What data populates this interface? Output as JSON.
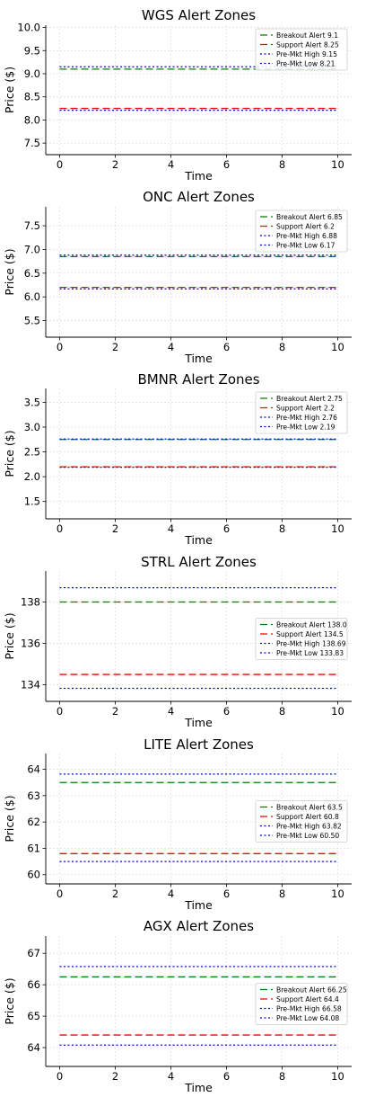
{
  "chart_data": [
    {
      "type": "line",
      "title": "WGS Alert Zones",
      "xlabel": "Time",
      "ylabel": "Price ($)",
      "xlim": [
        -0.5,
        10.5
      ],
      "ylim": [
        7.25,
        10.05
      ],
      "xticks": [
        0,
        2,
        4,
        6,
        8,
        10
      ],
      "yticks": [
        7.5,
        8.0,
        8.5,
        9.0,
        9.5,
        10.0
      ],
      "ytick_labels": [
        "7.5",
        "8.0",
        "8.5",
        "9.0",
        "9.5",
        "10.0"
      ],
      "grid": true,
      "legend_position": "upper right",
      "series": [
        {
          "name": "Breakout Alert 9.1",
          "x": [
            0,
            10
          ],
          "y": [
            9.1,
            9.1
          ],
          "color": "#008000",
          "dash": "dashed"
        },
        {
          "name": "Support Alert 8.25",
          "x": [
            0,
            10
          ],
          "y": [
            8.25,
            8.25
          ],
          "color": "#ff0000",
          "dash": "dashed"
        },
        {
          "name": "Pre-Mkt High 9.15",
          "x": [
            0,
            10
          ],
          "y": [
            9.15,
            9.15
          ],
          "color": "#0000ff",
          "dash": "dotted"
        },
        {
          "name": "Pre-Mkt Low 8.21",
          "x": [
            0,
            10
          ],
          "y": [
            8.21,
            8.21
          ],
          "color": "#0000ff",
          "dash": "dotted"
        }
      ]
    },
    {
      "type": "line",
      "title": "ONC Alert Zones",
      "xlabel": "Time",
      "ylabel": "Price ($)",
      "xlim": [
        -0.5,
        10.5
      ],
      "ylim": [
        5.15,
        7.9
      ],
      "xticks": [
        0,
        2,
        4,
        6,
        8,
        10
      ],
      "yticks": [
        5.5,
        6.0,
        6.5,
        7.0,
        7.5
      ],
      "ytick_labels": [
        "5.5",
        "6.0",
        "6.5",
        "7.0",
        "7.5"
      ],
      "grid": true,
      "legend_position": "upper right",
      "series": [
        {
          "name": "Breakout Alert 6.85",
          "x": [
            0,
            10
          ],
          "y": [
            6.85,
            6.85
          ],
          "color": "#008000",
          "dash": "dashed"
        },
        {
          "name": "Support Alert 6.2",
          "x": [
            0,
            10
          ],
          "y": [
            6.2,
            6.2
          ],
          "color": "#ff0000",
          "dash": "dashed"
        },
        {
          "name": "Pre-Mkt High 6.88",
          "x": [
            0,
            10
          ],
          "y": [
            6.88,
            6.88
          ],
          "color": "#0000ff",
          "dash": "dotted"
        },
        {
          "name": "Pre-Mkt Low 6.17",
          "x": [
            0,
            10
          ],
          "y": [
            6.17,
            6.17
          ],
          "color": "#0000ff",
          "dash": "dotted"
        }
      ]
    },
    {
      "type": "line",
      "title": "BMNR Alert Zones",
      "xlabel": "Time",
      "ylabel": "Price ($)",
      "xlim": [
        -0.5,
        10.5
      ],
      "ylim": [
        1.15,
        3.78
      ],
      "xticks": [
        0,
        2,
        4,
        6,
        8,
        10
      ],
      "yticks": [
        1.5,
        2.0,
        2.5,
        3.0,
        3.5
      ],
      "ytick_labels": [
        "1.5",
        "2.0",
        "2.5",
        "3.0",
        "3.5"
      ],
      "grid": true,
      "legend_position": "upper right",
      "series": [
        {
          "name": "Breakout Alert 2.75",
          "x": [
            0,
            10
          ],
          "y": [
            2.75,
            2.75
          ],
          "color": "#008000",
          "dash": "dashed"
        },
        {
          "name": "Support Alert 2.2",
          "x": [
            0,
            10
          ],
          "y": [
            2.2,
            2.2
          ],
          "color": "#ff0000",
          "dash": "dashed"
        },
        {
          "name": "Pre-Mkt High 2.76",
          "x": [
            0,
            10
          ],
          "y": [
            2.76,
            2.76
          ],
          "color": "#0000ff",
          "dash": "dotted"
        },
        {
          "name": "Pre-Mkt Low 2.19",
          "x": [
            0,
            10
          ],
          "y": [
            2.19,
            2.19
          ],
          "color": "#0000ff",
          "dash": "dotted"
        }
      ]
    },
    {
      "type": "line",
      "title": "STRL Alert Zones",
      "xlabel": "Time",
      "ylabel": "Price ($)",
      "xlim": [
        -0.5,
        10.5
      ],
      "ylim": [
        133.2,
        139.5
      ],
      "xticks": [
        0,
        2,
        4,
        6,
        8,
        10
      ],
      "yticks": [
        134,
        136,
        138
      ],
      "ytick_labels": [
        "134",
        "136",
        "138"
      ],
      "grid": true,
      "legend_position": "center right",
      "series": [
        {
          "name": "Breakout Alert 138.0",
          "x": [
            0,
            10
          ],
          "y": [
            138.0,
            138.0
          ],
          "color": "#008000",
          "dash": "dashed"
        },
        {
          "name": "Support Alert 134.5",
          "x": [
            0,
            10
          ],
          "y": [
            134.5,
            134.5
          ],
          "color": "#ff0000",
          "dash": "dashed"
        },
        {
          "name": "Pre-Mkt High 138.69",
          "x": [
            0,
            10
          ],
          "y": [
            138.69,
            138.69
          ],
          "color": "#0000ff",
          "dash": "dotted"
        },
        {
          "name": "Pre-Mkt Low 133.83",
          "x": [
            0,
            10
          ],
          "y": [
            133.83,
            133.83
          ],
          "color": "#0000ff",
          "dash": "dotted"
        }
      ]
    },
    {
      "type": "line",
      "title": "LITE Alert Zones",
      "xlabel": "Time",
      "ylabel": "Price ($)",
      "xlim": [
        -0.5,
        10.5
      ],
      "ylim": [
        59.65,
        64.6
      ],
      "xticks": [
        0,
        2,
        4,
        6,
        8,
        10
      ],
      "yticks": [
        60,
        61,
        62,
        63,
        64
      ],
      "ytick_labels": [
        "60",
        "61",
        "62",
        "63",
        "64"
      ],
      "grid": true,
      "legend_position": "center right",
      "series": [
        {
          "name": "Breakout Alert 63.5",
          "x": [
            0,
            10
          ],
          "y": [
            63.5,
            63.5
          ],
          "color": "#008000",
          "dash": "dashed"
        },
        {
          "name": "Support Alert 60.8",
          "x": [
            0,
            10
          ],
          "y": [
            60.8,
            60.8
          ],
          "color": "#ff0000",
          "dash": "dashed"
        },
        {
          "name": "Pre-Mkt High 63.82",
          "x": [
            0,
            10
          ],
          "y": [
            63.82,
            63.82
          ],
          "color": "#0000ff",
          "dash": "dotted"
        },
        {
          "name": "Pre-Mkt Low 60.50",
          "x": [
            0,
            10
          ],
          "y": [
            60.5,
            60.5
          ],
          "color": "#0000ff",
          "dash": "dotted"
        }
      ]
    },
    {
      "type": "line",
      "title": "AGX Alert Zones",
      "xlabel": "Time",
      "ylabel": "Price ($)",
      "xlim": [
        -0.5,
        10.5
      ],
      "ylim": [
        63.4,
        67.55
      ],
      "xticks": [
        0,
        2,
        4,
        6,
        8,
        10
      ],
      "yticks": [
        64,
        65,
        66,
        67
      ],
      "ytick_labels": [
        "64",
        "65",
        "66",
        "67"
      ],
      "grid": true,
      "legend_position": "center right",
      "series": [
        {
          "name": "Breakout Alert 66.25",
          "x": [
            0,
            10
          ],
          "y": [
            66.25,
            66.25
          ],
          "color": "#008000",
          "dash": "dashed"
        },
        {
          "name": "Support Alert 64.4",
          "x": [
            0,
            10
          ],
          "y": [
            64.4,
            64.4
          ],
          "color": "#ff0000",
          "dash": "dashed"
        },
        {
          "name": "Pre-Mkt High 66.58",
          "x": [
            0,
            10
          ],
          "y": [
            66.58,
            66.58
          ],
          "color": "#0000ff",
          "dash": "dotted"
        },
        {
          "name": "Pre-Mkt Low 64.08",
          "x": [
            0,
            10
          ],
          "y": [
            64.08,
            64.08
          ],
          "color": "#0000ff",
          "dash": "dotted"
        }
      ]
    }
  ]
}
